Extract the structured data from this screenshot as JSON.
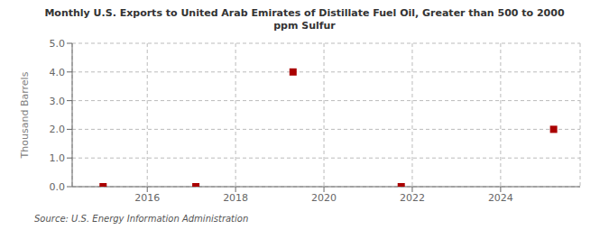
{
  "chart_data": {
    "type": "scatter",
    "title": "Monthly U.S. Exports to United Arab Emirates of Distillate Fuel Oil, Greater than 500 to 2000\nppm Sulfur",
    "y_label": "Thousand Barrels",
    "annotations": [
      "Source: U.S. Energy Information Administration"
    ],
    "x": [
      2015.0,
      2017.1,
      2019.3,
      2021.75,
      2025.2
    ],
    "values": [
      0.0,
      0.0,
      4.0,
      0.0,
      2.0
    ],
    "color": "#aa0000",
    "marker": "square",
    "xlim": [
      2014.3,
      2025.8
    ],
    "xticks": [
      2016,
      2018,
      2020,
      2022,
      2024
    ],
    "ylim": [
      0.0,
      5.0
    ],
    "yticks": [
      {
        "value": 0,
        "label": "0.0"
      },
      {
        "value": 1,
        "label": "1.0"
      },
      {
        "value": 2,
        "label": "2.0"
      },
      {
        "value": 3,
        "label": "3.0"
      },
      {
        "value": 4,
        "label": "4.0"
      },
      {
        "value": 5,
        "label": "5.0"
      }
    ],
    "grid": true
  }
}
